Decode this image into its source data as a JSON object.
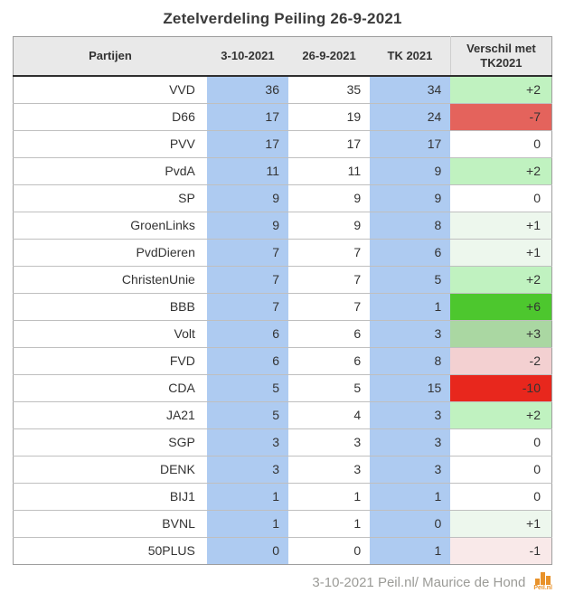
{
  "title": "Zetelverdeling Peiling 26-9-2021",
  "chart_data": {
    "type": "table",
    "title": "Zetelverdeling Peiling 26-9-2021",
    "columns": [
      "Partijen",
      "3-10-2021",
      "26-9-2021",
      "TK 2021",
      "Verschil met TK2021"
    ],
    "rows": [
      {
        "party": "VVD",
        "poll_3_10": 36,
        "poll_26_9": 35,
        "tk2021": 34,
        "verschil": "+2",
        "verschil_color": "#c0f2c0"
      },
      {
        "party": "D66",
        "poll_3_10": 17,
        "poll_26_9": 19,
        "tk2021": 24,
        "verschil": "-7",
        "verschil_color": "#e4635c"
      },
      {
        "party": "PVV",
        "poll_3_10": 17,
        "poll_26_9": 17,
        "tk2021": 17,
        "verschil": "0",
        "verschil_color": "#ffffff"
      },
      {
        "party": "PvdA",
        "poll_3_10": 11,
        "poll_26_9": 11,
        "tk2021": 9,
        "verschil": "+2",
        "verschil_color": "#c0f2c0"
      },
      {
        "party": "SP",
        "poll_3_10": 9,
        "poll_26_9": 9,
        "tk2021": 9,
        "verschil": "0",
        "verschil_color": "#ffffff"
      },
      {
        "party": "GroenLinks",
        "poll_3_10": 9,
        "poll_26_9": 9,
        "tk2021": 8,
        "verschil": "+1",
        "verschil_color": "#edf7ed"
      },
      {
        "party": "PvdDieren",
        "poll_3_10": 7,
        "poll_26_9": 7,
        "tk2021": 6,
        "verschil": "+1",
        "verschil_color": "#edf7ed"
      },
      {
        "party": "ChristenUnie",
        "poll_3_10": 7,
        "poll_26_9": 7,
        "tk2021": 5,
        "verschil": "+2",
        "verschil_color": "#c0f2c0"
      },
      {
        "party": "BBB",
        "poll_3_10": 7,
        "poll_26_9": 7,
        "tk2021": 1,
        "verschil": "+6",
        "verschil_color": "#4dc72e"
      },
      {
        "party": "Volt",
        "poll_3_10": 6,
        "poll_26_9": 6,
        "tk2021": 3,
        "verschil": "+3",
        "verschil_color": "#aad7a2"
      },
      {
        "party": "FVD",
        "poll_3_10": 6,
        "poll_26_9": 6,
        "tk2021": 8,
        "verschil": "-2",
        "verschil_color": "#f3d0d1"
      },
      {
        "party": "CDA",
        "poll_3_10": 5,
        "poll_26_9": 5,
        "tk2021": 15,
        "verschil": "-10",
        "verschil_color": "#e8271d"
      },
      {
        "party": "JA21",
        "poll_3_10": 5,
        "poll_26_9": 4,
        "tk2021": 3,
        "verschil": "+2",
        "verschil_color": "#c0f2c0"
      },
      {
        "party": "SGP",
        "poll_3_10": 3,
        "poll_26_9": 3,
        "tk2021": 3,
        "verschil": "0",
        "verschil_color": "#ffffff"
      },
      {
        "party": "DENK",
        "poll_3_10": 3,
        "poll_26_9": 3,
        "tk2021": 3,
        "verschil": "0",
        "verschil_color": "#ffffff"
      },
      {
        "party": "BIJ1",
        "poll_3_10": 1,
        "poll_26_9": 1,
        "tk2021": 1,
        "verschil": "0",
        "verschil_color": "#ffffff"
      },
      {
        "party": "BVNL",
        "poll_3_10": 1,
        "poll_26_9": 1,
        "tk2021": 0,
        "verschil": "+1",
        "verschil_color": "#edf7ed"
      },
      {
        "party": "50PLUS",
        "poll_3_10": 0,
        "poll_26_9": 0,
        "tk2021": 1,
        "verschil": "-1",
        "verschil_color": "#f9e9e9"
      }
    ]
  },
  "colors": {
    "poll_column_bg": "#aecbf1",
    "header_bg": "#e9e9e9",
    "outer_border": "#9e9e9e",
    "row_divider": "#bfbfbf",
    "header_divider": "#2f2f2f",
    "positive_strong": "#4dc72e",
    "positive_medium": "#aad7a2",
    "positive_light": "#c0f2c0",
    "positive_faint": "#edf7ed",
    "negative_strong": "#e8271d",
    "negative_medium": "#e4635c",
    "negative_light": "#f3d0d1",
    "negative_faint": "#f9e9e9",
    "logo_orange": "#e8922a",
    "footer_text": "#9b9b97"
  },
  "footer": {
    "credit": "3-10-2021 Peil.nl/ Maurice de Hond",
    "logo_text": "Peil.nl"
  }
}
